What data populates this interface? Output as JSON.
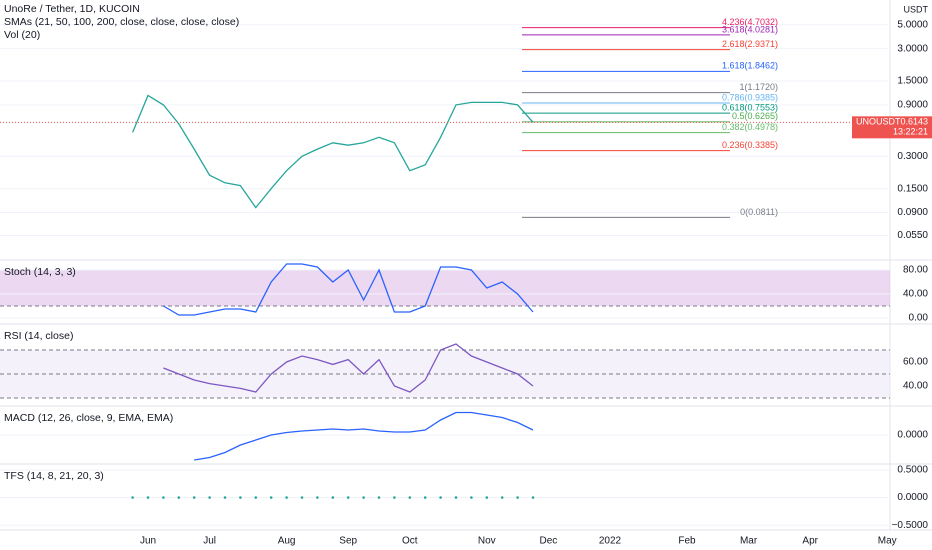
{
  "chart_data": [
    {
      "type": "line",
      "title": "UnoRe / Tether, 1D, KUCOIN",
      "subtitle": "SMAs (21, 50, 100, 200, close, close, close, close)",
      "annotations": [
        "Vol (20)"
      ],
      "y_label": "USDT",
      "log": true,
      "categories": [
        null,
        "Jun",
        null,
        null,
        null,
        "Jul",
        null,
        null,
        null,
        null,
        "Aug",
        null,
        null,
        null,
        "Sep",
        null,
        null,
        null,
        "Oct",
        null,
        null,
        null,
        null,
        "Nov",
        null,
        null,
        null,
        "Dec",
        null,
        null,
        null,
        "2022",
        null,
        null,
        null,
        null,
        "Feb",
        null,
        null,
        null,
        "Mar",
        null,
        null,
        null,
        "Apr",
        null,
        null,
        null,
        null,
        "May"
      ],
      "series": [
        {
          "name": "UNOUSDT",
          "color": "#26a69a",
          "last_label": "0.6143",
          "timer": "13:22:21",
          "values": [
            0.5,
            1.1,
            0.9,
            0.6,
            0.35,
            0.2,
            0.17,
            0.16,
            0.1,
            0.15,
            0.22,
            0.3,
            0.35,
            0.4,
            0.38,
            0.4,
            0.45,
            0.4,
            0.22,
            0.25,
            0.45,
            0.9,
            0.95,
            0.95,
            0.95,
            0.9,
            0.62,
            null,
            null,
            null,
            null,
            null,
            null,
            null,
            null,
            null,
            null,
            null,
            null,
            null,
            null,
            null,
            null,
            null,
            null,
            null,
            null,
            null,
            null,
            null
          ]
        }
      ],
      "ylim": [
        0.034,
        8.5
      ],
      "yticks": [
        {
          "value": 5,
          "label": "5.0000"
        },
        {
          "value": 3,
          "label": "3.0000"
        },
        {
          "value": 1.5,
          "label": "1.5000"
        },
        {
          "value": 0.9,
          "label": "0.9000"
        },
        {
          "value": 0.3,
          "label": "0.3000"
        },
        {
          "value": 0.15,
          "label": "0.1500"
        },
        {
          "value": 0.09,
          "label": "0.0900"
        },
        {
          "value": 0.055,
          "label": "0.0550"
        }
      ],
      "fib": [
        {
          "label": "4.236(4.7032)",
          "value": 4.7032,
          "color": "#e91e63"
        },
        {
          "label": "3.618(4.0281)",
          "value": 4.0281,
          "color": "#9c27b0"
        },
        {
          "label": "2.618(2.9371)",
          "value": 2.9371,
          "color": "#f44336"
        },
        {
          "label": "1.618(1.8462)",
          "value": 1.8462,
          "color": "#2962ff"
        },
        {
          "label": "1(1.1720)",
          "value": 1.172,
          "color": "#787b86"
        },
        {
          "label": "0.786(0.9385)",
          "value": 0.9385,
          "color": "#64b5f6"
        },
        {
          "label": "0.618(0.7553)",
          "value": 0.7553,
          "color": "#089981"
        },
        {
          "label": "0.5(0.6265)",
          "value": 0.6265,
          "color": "#4caf50"
        },
        {
          "label": "0.382(0.4978)",
          "value": 0.4978,
          "color": "#66bb6a"
        },
        {
          "label": "0.236(0.3385)",
          "value": 0.3385,
          "color": "#f44336"
        },
        {
          "label": "0(0.0811)",
          "value": 0.0811,
          "color": "#787b86"
        }
      ]
    },
    {
      "type": "line",
      "title": "Stoch (14, 3, 3)",
      "band_fill": "#e1bee7",
      "bands": [
        80,
        20
      ],
      "series": [
        {
          "color": "#2962ff",
          "values": [
            null,
            null,
            20,
            5,
            5,
            10,
            15,
            15,
            10,
            60,
            90,
            90,
            85,
            60,
            80,
            30,
            80,
            10,
            10,
            20,
            85,
            85,
            80,
            50,
            60,
            40,
            10,
            null,
            null,
            null,
            null,
            null,
            null,
            null,
            null,
            null,
            null,
            null,
            null,
            null,
            null,
            null,
            null,
            null,
            null,
            null,
            null,
            null,
            null,
            null
          ]
        }
      ],
      "ylim": [
        -6.7,
        93.3
      ],
      "yticks": [
        {
          "value": 80,
          "label": "80.00"
        },
        {
          "value": 40,
          "label": "40.00"
        },
        {
          "value": 0,
          "label": "0.00"
        }
      ]
    },
    {
      "type": "line",
      "title": "RSI (14, close)",
      "band_fill": "#ede7f6",
      "bands": [
        70,
        50,
        30
      ],
      "series": [
        {
          "color": "#7e57c2",
          "values": [
            null,
            null,
            55,
            50,
            45,
            42,
            40,
            38,
            35,
            50,
            60,
            65,
            62,
            58,
            62,
            50,
            62,
            40,
            35,
            45,
            70,
            75,
            65,
            60,
            55,
            50,
            40,
            null,
            null,
            null,
            null,
            null,
            null,
            null,
            null,
            null,
            null,
            null,
            null,
            null,
            null,
            null,
            null,
            null,
            null,
            null,
            null,
            null,
            null,
            null
          ]
        }
      ],
      "ylim": [
        25,
        90
      ],
      "yticks": [
        {
          "value": 60,
          "label": "60.00"
        },
        {
          "value": 40,
          "label": "40.00"
        }
      ]
    },
    {
      "type": "line",
      "title": "MACD (12, 26, close, 9, EMA, EMA)",
      "series": [
        {
          "color": "#2962ff",
          "values": [
            null,
            null,
            null,
            null,
            -0.05,
            -0.045,
            -0.035,
            -0.02,
            -0.01,
            0,
            0.005,
            0.008,
            0.01,
            0.012,
            0.01,
            0.012,
            0.008,
            0.006,
            0.006,
            0.01,
            0.03,
            0.045,
            0.045,
            0.04,
            0.035,
            0.025,
            0.01,
            null,
            null,
            null,
            null,
            null,
            null,
            null,
            null,
            null,
            null,
            null,
            null,
            null,
            null,
            null,
            null,
            null,
            null,
            null,
            null,
            null,
            null,
            null
          ]
        }
      ],
      "ylim": [
        -0.058,
        0.054
      ],
      "yticks": [
        {
          "value": 0,
          "label": "0.0000"
        }
      ]
    },
    {
      "type": "scatter",
      "title": "TFS (14, 8, 21, 20, 3)",
      "series": [
        {
          "color": "#26a69a",
          "values": [
            0,
            0,
            0,
            0,
            0,
            0,
            0,
            0,
            0,
            0,
            0,
            0,
            0,
            0,
            0,
            0,
            0,
            0,
            0,
            0,
            0,
            0,
            0,
            0,
            0,
            0,
            0,
            null,
            null,
            null,
            null,
            null,
            null,
            null,
            null,
            null,
            null,
            null,
            null,
            null,
            null,
            null,
            null,
            null,
            null,
            null,
            null,
            null,
            null,
            null
          ]
        }
      ],
      "ylim": [
        -0.55,
        0.57
      ],
      "yticks": [
        {
          "value": 0.5,
          "label": "0.5000"
        },
        {
          "value": 0,
          "label": "0.0000"
        },
        {
          "value": -0.5,
          "label": "−0.5000"
        }
      ]
    }
  ]
}
